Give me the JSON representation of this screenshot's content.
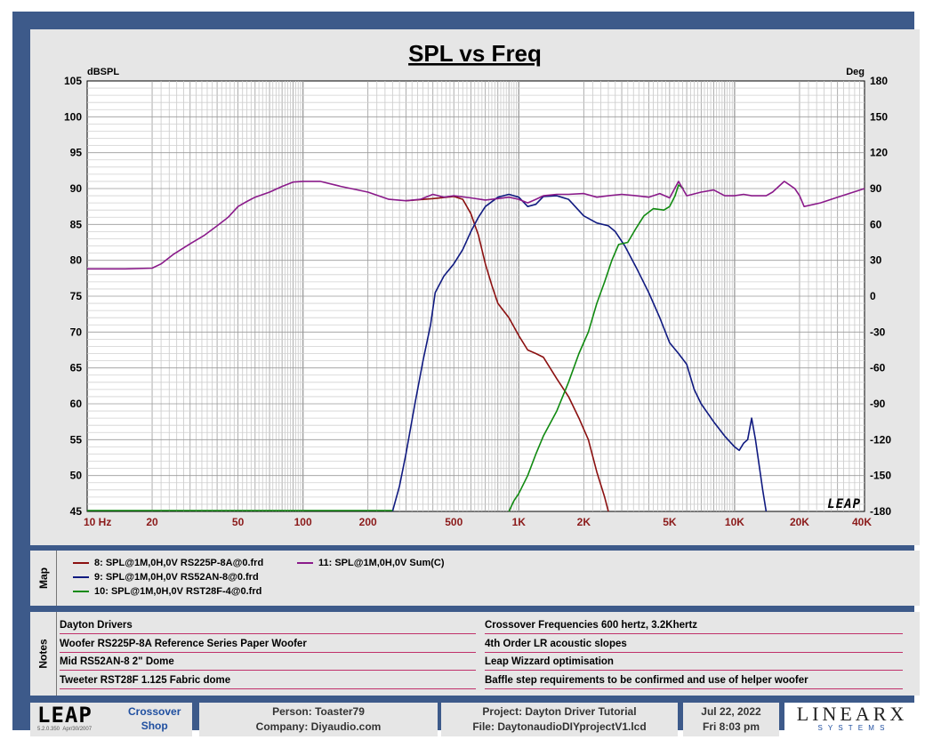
{
  "chart_data": {
    "type": "line",
    "title": "SPL vs Freq",
    "y_left_label": "dBSPL",
    "y_right_label": "Deg",
    "x_scale": "log",
    "xlim": [
      10,
      40000
    ],
    "ylim": [
      45,
      105
    ],
    "y2lim": [
      -180,
      180
    ],
    "x_ticks": [
      {
        "v": 10,
        "label": "10  Hz"
      },
      {
        "v": 20,
        "label": "20"
      },
      {
        "v": 50,
        "label": "50"
      },
      {
        "v": 100,
        "label": "100"
      },
      {
        "v": 200,
        "label": "200"
      },
      {
        "v": 500,
        "label": "500"
      },
      {
        "v": 1000,
        "label": "1K"
      },
      {
        "v": 2000,
        "label": "2K"
      },
      {
        "v": 5000,
        "label": "5K"
      },
      {
        "v": 10000,
        "label": "10K"
      },
      {
        "v": 20000,
        "label": "20K"
      },
      {
        "v": 40000,
        "label": "40K"
      }
    ],
    "y_ticks": [
      "105",
      "100",
      "95",
      "90",
      "85",
      "80",
      "75",
      "70",
      "65",
      "60",
      "55",
      "50",
      "45"
    ],
    "y2_ticks": [
      "180",
      "150",
      "120",
      "90",
      "60",
      "30",
      "0",
      "-30",
      "-60",
      "-90",
      "-120",
      "-150",
      "-180"
    ],
    "grid": true,
    "watermark": "LEAP",
    "series": [
      {
        "name": "8: SPL@1M,0H,0V RS225P-8A@0.frd",
        "color": "#8b1010",
        "points": [
          [
            300,
            88.3
          ],
          [
            400,
            88.6
          ],
          [
            500,
            88.9
          ],
          [
            550,
            88.5
          ],
          [
            600,
            86.5
          ],
          [
            650,
            83.5
          ],
          [
            700,
            79.5
          ],
          [
            750,
            76.5
          ],
          [
            800,
            74
          ],
          [
            900,
            72
          ],
          [
            1000,
            69.5
          ],
          [
            1100,
            67.5
          ],
          [
            1200,
            67
          ],
          [
            1300,
            66.5
          ],
          [
            1500,
            63.5
          ],
          [
            1700,
            61
          ],
          [
            1900,
            58
          ],
          [
            2100,
            55
          ],
          [
            2300,
            50.5
          ],
          [
            2500,
            47
          ],
          [
            2600,
            45
          ]
        ]
      },
      {
        "name": "9: SPL@1M,0H,0V  RS52AN-8@0.frd",
        "color": "#101a80",
        "points": [
          [
            260,
            45
          ],
          [
            280,
            48.5
          ],
          [
            300,
            53
          ],
          [
            330,
            60
          ],
          [
            360,
            66
          ],
          [
            390,
            71
          ],
          [
            410,
            75.5
          ],
          [
            450,
            77.8
          ],
          [
            500,
            79.5
          ],
          [
            550,
            81.5
          ],
          [
            600,
            84
          ],
          [
            650,
            86
          ],
          [
            700,
            87.5
          ],
          [
            800,
            88.8
          ],
          [
            900,
            89.2
          ],
          [
            1000,
            88.8
          ],
          [
            1100,
            87.5
          ],
          [
            1200,
            87.8
          ],
          [
            1300,
            88.9
          ],
          [
            1500,
            89
          ],
          [
            1700,
            88.5
          ],
          [
            2000,
            86.2
          ],
          [
            2300,
            85.2
          ],
          [
            2600,
            84.8
          ],
          [
            2800,
            84
          ],
          [
            3100,
            82
          ],
          [
            3500,
            79
          ],
          [
            4000,
            75.5
          ],
          [
            4500,
            72
          ],
          [
            5000,
            68.5
          ],
          [
            5500,
            67
          ],
          [
            6000,
            65.5
          ],
          [
            6500,
            62
          ],
          [
            7000,
            60
          ],
          [
            8000,
            57.5
          ],
          [
            9000,
            55.5
          ],
          [
            10000,
            54
          ],
          [
            10500,
            53.5
          ],
          [
            11000,
            54.5
          ],
          [
            11500,
            55
          ],
          [
            12000,
            58
          ],
          [
            12500,
            55
          ],
          [
            13500,
            48
          ],
          [
            14000,
            45
          ]
        ]
      },
      {
        "name": "10: SPL@1M,0H,0V  RST28F-4@0.frd",
        "color": "#108a10",
        "points": [
          [
            900,
            45
          ],
          [
            950,
            46.5
          ],
          [
            1000,
            47.5
          ],
          [
            1100,
            50
          ],
          [
            1200,
            53
          ],
          [
            1300,
            55.5
          ],
          [
            1500,
            59
          ],
          [
            1700,
            63
          ],
          [
            1900,
            67
          ],
          [
            2100,
            70
          ],
          [
            2300,
            74
          ],
          [
            2500,
            77
          ],
          [
            2700,
            80
          ],
          [
            2900,
            82.2
          ],
          [
            3200,
            82.5
          ],
          [
            3500,
            84.5
          ],
          [
            3800,
            86.2
          ],
          [
            4200,
            87.2
          ],
          [
            4700,
            87
          ],
          [
            5000,
            87.5
          ],
          [
            5300,
            89
          ],
          [
            5500,
            90.5
          ],
          [
            5800,
            90
          ]
        ]
      },
      {
        "name": "11: SPL@1M,0H,0V Sum(C)",
        "color": "#8a1a8a",
        "points": [
          [
            10,
            78.8
          ],
          [
            15,
            78.8
          ],
          [
            20,
            78.9
          ],
          [
            22,
            79.5
          ],
          [
            25,
            80.8
          ],
          [
            30,
            82.3
          ],
          [
            35,
            83.5
          ],
          [
            40,
            84.8
          ],
          [
            45,
            86
          ],
          [
            50,
            87.5
          ],
          [
            55,
            88.2
          ],
          [
            60,
            88.8
          ],
          [
            70,
            89.5
          ],
          [
            80,
            90.3
          ],
          [
            90,
            90.9
          ],
          [
            100,
            91
          ],
          [
            110,
            91
          ],
          [
            120,
            91
          ],
          [
            150,
            90.3
          ],
          [
            200,
            89.5
          ],
          [
            250,
            88.5
          ],
          [
            300,
            88.3
          ],
          [
            350,
            88.5
          ],
          [
            400,
            89.2
          ],
          [
            450,
            88.8
          ],
          [
            500,
            89
          ],
          [
            600,
            88.7
          ],
          [
            700,
            88.4
          ],
          [
            800,
            88.6
          ],
          [
            900,
            88.8
          ],
          [
            1000,
            88.5
          ],
          [
            1100,
            88
          ],
          [
            1200,
            88.5
          ],
          [
            1300,
            89
          ],
          [
            1500,
            89.2
          ],
          [
            1700,
            89.2
          ],
          [
            2000,
            89.3
          ],
          [
            2300,
            88.8
          ],
          [
            2600,
            89
          ],
          [
            3000,
            89.2
          ],
          [
            3500,
            89
          ],
          [
            4000,
            88.8
          ],
          [
            4500,
            89.3
          ],
          [
            5000,
            88.7
          ],
          [
            5500,
            91
          ],
          [
            6000,
            89
          ],
          [
            7000,
            89.5
          ],
          [
            8000,
            89.8
          ],
          [
            9000,
            89
          ],
          [
            10000,
            89
          ],
          [
            11000,
            89.2
          ],
          [
            12000,
            89
          ],
          [
            14000,
            89
          ],
          [
            15000,
            89.5
          ],
          [
            17000,
            91
          ],
          [
            19000,
            90
          ],
          [
            20000,
            89
          ],
          [
            21000,
            87.5
          ],
          [
            25000,
            88
          ],
          [
            30000,
            88.8
          ],
          [
            40000,
            90
          ]
        ]
      }
    ]
  },
  "map": {
    "label": "Map",
    "items": [
      {
        "text": "8: SPL@1M,0H,0V RS225P-8A@0.frd",
        "color": "#8b1010"
      },
      {
        "text": "9: SPL@1M,0H,0V  RS52AN-8@0.frd",
        "color": "#101a80"
      },
      {
        "text": "10: SPL@1M,0H,0V  RST28F-4@0.frd",
        "color": "#108a10"
      },
      {
        "text": "11: SPL@1M,0H,0V Sum(C)",
        "color": "#8a1a8a"
      }
    ]
  },
  "notes": {
    "label": "Notes",
    "left": [
      "Dayton Drivers",
      "Woofer RS225P-8A Reference Series Paper Woofer",
      "Mid RS52AN-8 2\" Dome",
      "Tweeter RST28F 1.125 Fabric dome"
    ],
    "right": [
      "Crossover Frequencies 600 hertz, 3.2Khertz",
      "4th Order LR acoustic slopes",
      "Leap Wizzard optimisation",
      "Baffle step requirements to be confirmed and use of helper woofer"
    ]
  },
  "footer": {
    "logo": "LEAP",
    "version": "5.2.0.350",
    "version_date": "Apr/30/2007",
    "module_line1": "Crossover",
    "module_line2": "Shop",
    "person": "Person: Toaster79",
    "company": "Company: Diyaudio.com",
    "project": "Project: Dayton Driver Tutorial",
    "file": "File: DaytonaudioDIYprojectV1.lcd",
    "date": "Jul 22, 2022",
    "time": "Fri  8:03 pm",
    "brand_main": "LINEARX",
    "brand_sub": "S Y S T E M S"
  }
}
